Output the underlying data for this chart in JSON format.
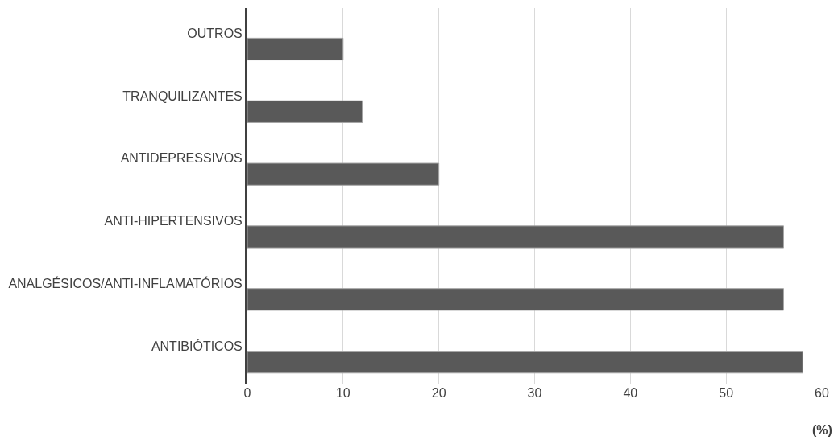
{
  "chart_data": {
    "type": "bar",
    "orientation": "horizontal",
    "categories": [
      "OUTROS",
      "TRANQUILIZANTES",
      "ANTIDEPRESSIVOS",
      "ANTI-HIPERTENSIVOS",
      "ANALGÉSICOS/ANTI-INFLAMATÓRIOS",
      "ANTIBIÓTICOS"
    ],
    "values": [
      10,
      12,
      20,
      56,
      56,
      58
    ],
    "color": "#595959",
    "xlabel": "(%)",
    "xlim": [
      0,
      60
    ],
    "xticks": [
      0,
      10,
      20,
      30,
      40,
      50,
      60
    ],
    "grid": "x",
    "legend": false
  }
}
